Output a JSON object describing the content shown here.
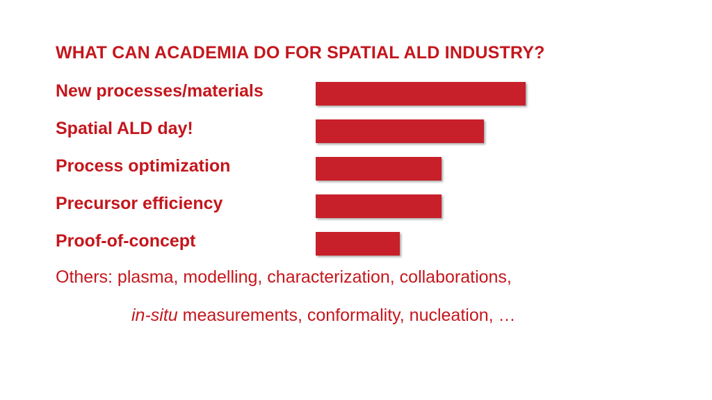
{
  "slide": {
    "title": "WHAT CAN ACADEMIA DO FOR SPATIAL ALD INDUSTRY?",
    "others_line1": "Others: plasma, modelling, characterization, collaborations,",
    "others_line2_italic": "in-situ",
    "others_line2_rest": " measurements, conformality, nucleation, …"
  },
  "colors": {
    "accent": "#c4161c",
    "bar": "#c8202a"
  },
  "chart_data": {
    "type": "bar",
    "orientation": "horizontal",
    "categories": [
      "New processes/materials",
      "Spatial ALD day!",
      "Process optimization",
      "Precursor efficiency",
      "Proof-of-concept"
    ],
    "values": [
      5,
      4,
      3,
      3,
      2
    ],
    "title": "WHAT CAN ACADEMIA DO FOR SPATIAL ALD INDUSTRY?",
    "xlabel": "",
    "ylabel": "",
    "xlim": [
      0,
      5
    ],
    "grid": false
  }
}
